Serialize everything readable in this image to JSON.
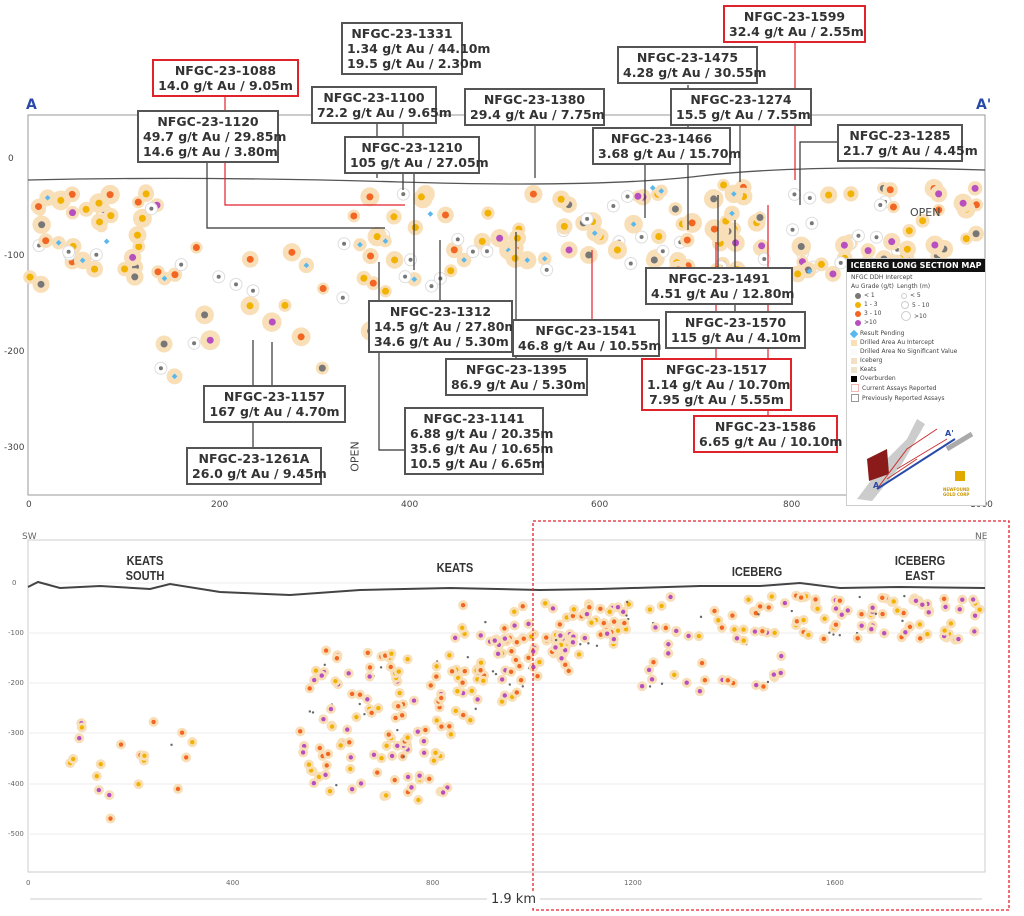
{
  "top_section": {
    "left_label": "A",
    "right_label": "A'",
    "x_ticks": [
      "0",
      "200",
      "400",
      "600",
      "800",
      "1000"
    ],
    "y_ticks": [
      "0",
      "-100",
      "-200",
      "-300"
    ],
    "open_labels": [
      "OPEN",
      "OPEN"
    ]
  },
  "callouts": [
    {
      "id": "1331",
      "lines": [
        "NFGC-23-1331",
        "1.34 g/t Au / 44.10m",
        "19.5 g/t Au / 2.30m"
      ],
      "highlight": false
    },
    {
      "id": "1088",
      "lines": [
        "NFGC-23-1088",
        "14.0 g/t Au / 9.05m"
      ],
      "highlight": true
    },
    {
      "id": "1100",
      "lines": [
        "NFGC-23-1100",
        "72.2 g/t Au / 9.65m"
      ],
      "highlight": false
    },
    {
      "id": "1120",
      "lines": [
        "NFGC-23-1120",
        "49.7 g/t Au / 29.85m",
        "14.6 g/t Au / 3.80m"
      ],
      "highlight": false
    },
    {
      "id": "1380",
      "lines": [
        "NFGC-23-1380",
        "29.4 g/t Au / 7.75m"
      ],
      "highlight": false
    },
    {
      "id": "1599",
      "lines": [
        "NFGC-23-1599",
        "32.4 g/t Au / 2.55m"
      ],
      "highlight": true
    },
    {
      "id": "1475",
      "lines": [
        "NFGC-23-1475",
        "4.28 g/t Au / 30.55m"
      ],
      "highlight": false
    },
    {
      "id": "1274",
      "lines": [
        "NFGC-23-1274",
        "15.5 g/t Au / 7.55m"
      ],
      "highlight": false
    },
    {
      "id": "1210",
      "lines": [
        "NFGC-23-1210",
        "105 g/t Au / 27.05m"
      ],
      "highlight": false
    },
    {
      "id": "1466",
      "lines": [
        "NFGC-23-1466",
        "3.68 g/t Au / 15.70m"
      ],
      "highlight": false
    },
    {
      "id": "1285",
      "lines": [
        "NFGC-23-1285",
        "21.7 g/t Au / 4.45m"
      ],
      "highlight": false
    },
    {
      "id": "1491",
      "lines": [
        "NFGC-23-1491",
        "4.51 g/t Au / 12.80m"
      ],
      "highlight": false
    },
    {
      "id": "1312",
      "lines": [
        "NFGC-23-1312",
        "14.5 g/t Au / 27.80m",
        "34.6 g/t Au / 5.30m"
      ],
      "highlight": false
    },
    {
      "id": "1570",
      "lines": [
        "NFGC-23-1570",
        "115 g/t Au / 4.10m"
      ],
      "highlight": false
    },
    {
      "id": "1541",
      "lines": [
        "NFGC-23-1541",
        "46.8 g/t Au / 10.55m"
      ],
      "highlight": false
    },
    {
      "id": "1395",
      "lines": [
        "NFGC-23-1395",
        "86.9 g/t Au / 5.30m"
      ],
      "highlight": false
    },
    {
      "id": "1517",
      "lines": [
        "NFGC-23-1517",
        "1.14 g/t Au / 10.70m",
        "7.95 g/t Au / 5.55m"
      ],
      "highlight": true
    },
    {
      "id": "1157",
      "lines": [
        "NFGC-23-1157",
        "167 g/t  Au / 4.70m"
      ],
      "highlight": false
    },
    {
      "id": "1141",
      "lines": [
        "NFGC-23-1141",
        "6.88 g/t Au / 20.35m",
        "35.6 g/t Au / 10.65m",
        "10.5 g/t Au / 6.65m"
      ],
      "highlight": false
    },
    {
      "id": "1586",
      "lines": [
        "NFGC-23-1586",
        "6.65 g/t Au / 10.10m"
      ],
      "highlight": true
    },
    {
      "id": "1261A",
      "lines": [
        "NFGC-23-1261A",
        "26.0 g/t Au / 9.45m"
      ],
      "highlight": false
    }
  ],
  "legend": {
    "title": "ICEBERG LONG SECTION MAP",
    "subtitle": "NFGC DDH Intercept",
    "grade_header": "Au Grade (g/t)",
    "length_header": "Length (m)",
    "grades": [
      {
        "label": "< 1",
        "color": "#777777"
      },
      {
        "label": "1 - 3",
        "color": "#f2b200"
      },
      {
        "label": "3 - 10",
        "color": "#f26522"
      },
      {
        "label": ">10",
        "color": "#b84fc0"
      }
    ],
    "lengths": [
      "< 5",
      "5 - 10",
      ">10"
    ],
    "items": [
      "Result Pending",
      "Drilled Area Au Intercept",
      "Drilled Area No Significant Value",
      "Iceberg",
      "Keats",
      "Overburden",
      "Current Assays Reported",
      "Previously Reported Assays"
    ],
    "map_labels": [
      "A",
      "A'"
    ],
    "logo_text": "NEWFOUND GOLD CORP"
  },
  "bottom_section": {
    "left_label": "SW",
    "right_label": "NE",
    "zones": [
      "KEATS SOUTH",
      "KEATS",
      "ICEBERG",
      "ICEBERG EAST"
    ],
    "x_ticks": [
      "0",
      "400",
      "800",
      "1200",
      "1600"
    ],
    "y_ticks": [
      "0",
      "-100",
      "-200",
      "-300",
      "-400",
      "-500"
    ],
    "scale_label": "1.9 km"
  },
  "colors": {
    "highlight": "#e0222a",
    "section_letter": "#2a4aa8",
    "halo": "#f8dfb8",
    "pending": "#58b8ee"
  }
}
